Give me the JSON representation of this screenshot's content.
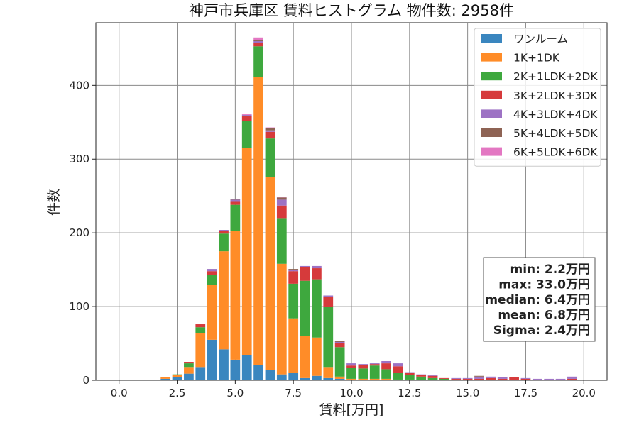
{
  "chart_data": {
    "type": "bar",
    "stacked": true,
    "title": "神戸市兵庫区 賃料ヒストグラム 物件数: 2958件",
    "xlabel": "賃料[万円]",
    "ylabel": "件数",
    "xlim": [
      -1.0,
      21.0
    ],
    "ylim": [
      0,
      485
    ],
    "xticks": [
      0.0,
      2.5,
      5.0,
      7.5,
      10.0,
      12.5,
      15.0,
      17.5,
      20.0
    ],
    "xtick_labels": [
      "0.0",
      "2.5",
      "5.0",
      "7.5",
      "10.0",
      "12.5",
      "15.0",
      "17.5",
      "20.0"
    ],
    "yticks": [
      0,
      100,
      200,
      300,
      400
    ],
    "ytick_labels": [
      "0",
      "100",
      "200",
      "300",
      "400"
    ],
    "grid": true,
    "legend_position": "top-right",
    "bin_width": 0.5,
    "bin_starts": [
      1.75,
      2.25,
      2.75,
      3.25,
      3.75,
      4.25,
      4.75,
      5.25,
      5.75,
      6.25,
      6.75,
      7.25,
      7.75,
      8.25,
      8.75,
      9.25,
      9.75,
      10.25,
      10.75,
      11.25,
      11.75,
      12.25,
      12.75,
      13.25,
      13.75,
      14.25,
      14.75,
      15.25,
      15.75,
      16.25,
      16.75,
      17.25,
      17.75,
      18.25,
      18.75,
      19.25
    ],
    "series": [
      {
        "name": "ワンルーム",
        "color": "#3a86bf",
        "values": [
          2,
          4,
          9,
          18,
          55,
          42,
          28,
          34,
          21,
          14,
          8,
          10,
          3,
          6,
          3,
          2,
          1,
          1,
          1,
          1,
          0,
          0,
          0,
          0,
          0,
          0,
          0,
          0,
          0,
          0,
          0,
          0,
          0,
          0,
          0,
          0
        ]
      },
      {
        "name": "1K+1DK",
        "color": "#ff8c28",
        "values": [
          2,
          3,
          9,
          46,
          74,
          133,
          175,
          281,
          390,
          262,
          150,
          74,
          57,
          52,
          15,
          3,
          1,
          1,
          1,
          1,
          1,
          1,
          0,
          0,
          0,
          0,
          0,
          0,
          0,
          0,
          0,
          0,
          0,
          0,
          0,
          0
        ]
      },
      {
        "name": "2K+1LDK+2DK",
        "color": "#3ea83e",
        "values": [
          0,
          1,
          5,
          8,
          14,
          24,
          35,
          37,
          42,
          52,
          62,
          47,
          75,
          79,
          82,
          40,
          15,
          14,
          18,
          13,
          9,
          6,
          5,
          3,
          2,
          1,
          1,
          0,
          0,
          0,
          0,
          0,
          0,
          0,
          0,
          0
        ]
      },
      {
        "name": "3K+2LDK+3DK",
        "color": "#d63a3b",
        "values": [
          0,
          0,
          2,
          4,
          5,
          4,
          5,
          7,
          5,
          9,
          17,
          17,
          18,
          15,
          13,
          6,
          3,
          5,
          2,
          8,
          9,
          3,
          2,
          3,
          1,
          1,
          1,
          2,
          3,
          2,
          4,
          2,
          1,
          1,
          1,
          2
        ]
      },
      {
        "name": "4K+3LDK+4DK",
        "color": "#9d72c4",
        "values": [
          0,
          0,
          0,
          0,
          3,
          1,
          2,
          1,
          2,
          2,
          8,
          2,
          2,
          3,
          2,
          1,
          3,
          1,
          1,
          3,
          4,
          1,
          1,
          1,
          0,
          1,
          1,
          3,
          2,
          2,
          0,
          1,
          1,
          1,
          1,
          3
        ]
      },
      {
        "name": "5K+4LDK+5DK",
        "color": "#8e6354",
        "values": [
          0,
          0,
          0,
          0,
          0,
          0,
          1,
          0,
          1,
          3,
          3,
          1,
          0,
          0,
          0,
          1,
          0,
          0,
          0,
          0,
          0,
          0,
          0,
          0,
          0,
          0,
          0,
          1,
          0,
          0,
          0,
          0,
          0,
          0,
          0,
          0
        ]
      },
      {
        "name": "6K+5LDK+6DK",
        "color": "#e377c2",
        "values": [
          0,
          0,
          0,
          0,
          0,
          0,
          0,
          1,
          4,
          1,
          1,
          0,
          0,
          0,
          0,
          0,
          0,
          0,
          0,
          0,
          0,
          0,
          0,
          0,
          0,
          0,
          0,
          0,
          0,
          0,
          0,
          0,
          0,
          0,
          0,
          0
        ]
      }
    ],
    "stats": [
      "min: 2.2万円",
      "max: 33.0万円",
      "median: 6.4万円",
      "mean: 6.8万円",
      "Sigma: 2.4万円"
    ]
  }
}
